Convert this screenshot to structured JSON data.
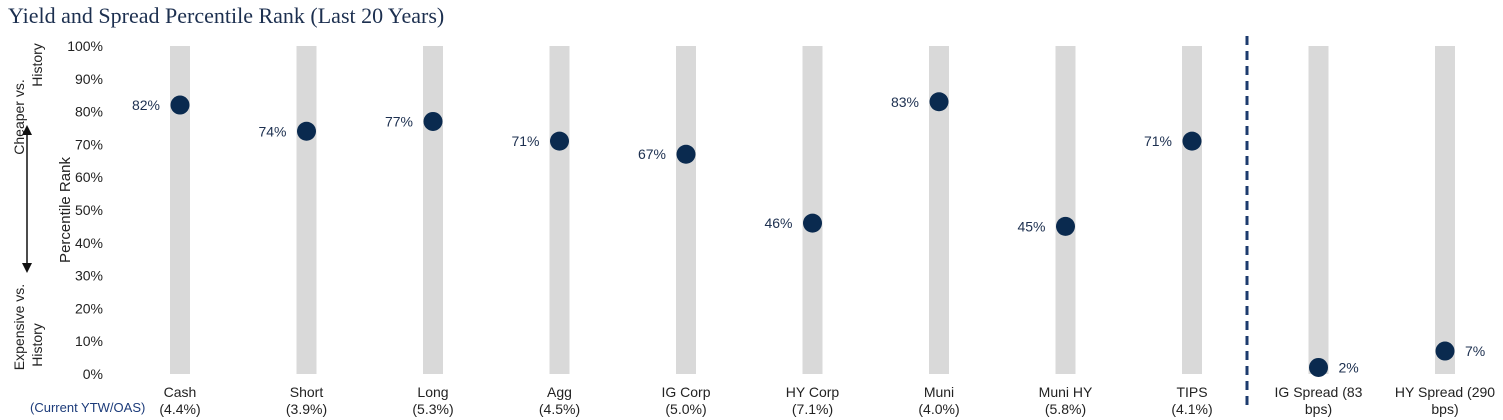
{
  "title": "Yield and Spread Percentile Rank (Last 20 Years)",
  "y_axis_label": "Percentile Rank",
  "side_top_label": [
    "Cheaper vs.",
    "History"
  ],
  "side_bottom_label": [
    "Expensive vs.",
    "History"
  ],
  "x_subtitle": "(Current YTW/OAS)",
  "colors": {
    "marker": "#0a2a4f",
    "band": "#d9d9d9",
    "divider": "#1c3b6e",
    "title": "#1c2f4f"
  },
  "chart_data": {
    "type": "scatter",
    "ylim": [
      0,
      100
    ],
    "yticks": [
      "0%",
      "10%",
      "20%",
      "30%",
      "40%",
      "50%",
      "60%",
      "70%",
      "80%",
      "90%",
      "100%"
    ],
    "grid": false,
    "divider_after_index": 8,
    "categories": [
      {
        "name": "Cash",
        "sub": "(4.4%)",
        "value": 82,
        "label": "82%",
        "label_side": "left"
      },
      {
        "name": "Short",
        "sub": "(3.9%)",
        "value": 74,
        "label": "74%",
        "label_side": "left"
      },
      {
        "name": "Long",
        "sub": "(5.3%)",
        "value": 77,
        "label": "77%",
        "label_side": "left"
      },
      {
        "name": "Agg",
        "sub": "(4.5%)",
        "value": 71,
        "label": "71%",
        "label_side": "left"
      },
      {
        "name": "IG Corp",
        "sub": "(5.0%)",
        "value": 67,
        "label": "67%",
        "label_side": "left"
      },
      {
        "name": "HY Corp",
        "sub": "(7.1%)",
        "value": 46,
        "label": "46%",
        "label_side": "left"
      },
      {
        "name": "Muni",
        "sub": "(4.0%)",
        "value": 83,
        "label": "83%",
        "label_side": "left"
      },
      {
        "name": "Muni HY",
        "sub": "(5.8%)",
        "value": 45,
        "label": "45%",
        "label_side": "left"
      },
      {
        "name": "TIPS",
        "sub": "(4.1%)",
        "value": 71,
        "label": "71%",
        "label_side": "left"
      },
      {
        "name": "IG Spread (83",
        "sub": "bps)",
        "value": 2,
        "label": "2%",
        "label_side": "right"
      },
      {
        "name": "HY Spread (290",
        "sub": "bps)",
        "value": 7,
        "label": "7%",
        "label_side": "right"
      }
    ]
  }
}
